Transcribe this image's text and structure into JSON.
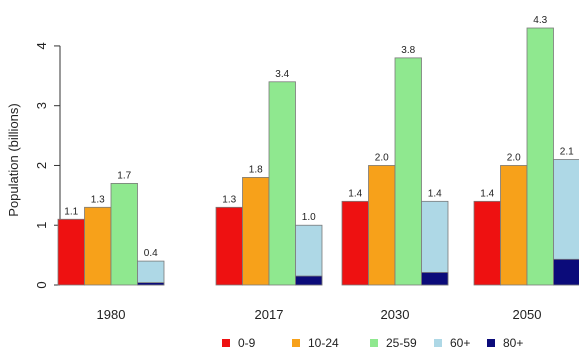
{
  "chart_data": {
    "type": "bar",
    "ylabel": "Population (billions)",
    "ylim": [
      0,
      4.3
    ],
    "yticks": [
      0,
      1,
      2,
      3,
      4
    ],
    "categories": [
      "1980",
      "2017",
      "2030",
      "2050"
    ],
    "series": [
      {
        "name": "0-9",
        "color": "#ee1111",
        "values": [
          1.1,
          1.3,
          1.4,
          1.4
        ],
        "labels": [
          "1.1",
          "1.3",
          "1.4",
          "1.4"
        ]
      },
      {
        "name": "10-24",
        "color": "#f7a11a",
        "values": [
          1.3,
          1.8,
          2.0,
          2.0
        ],
        "labels": [
          "1.3",
          "1.8",
          "2.0",
          "2.0"
        ]
      },
      {
        "name": "25-59",
        "color": "#8fe88f",
        "values": [
          1.7,
          3.4,
          3.8,
          4.3
        ],
        "labels": [
          "1.7",
          "3.4",
          "3.8",
          "4.3"
        ]
      },
      {
        "name": "60+",
        "color": "#aed8e6",
        "values": [
          0.4,
          1.0,
          1.4,
          2.1
        ],
        "labels": [
          "0.4",
          "1.0",
          "1.4",
          "2.1"
        ]
      }
    ],
    "stacked_within": {
      "name": "80+",
      "color": "#0b0b7a",
      "parent": "60+",
      "values": [
        0.04,
        0.15,
        0.21,
        0.43
      ]
    },
    "legend": {
      "position": "bottom",
      "items": [
        "0-9",
        "10-24",
        "25-59",
        "60+",
        "80+"
      ]
    },
    "grid": false
  }
}
